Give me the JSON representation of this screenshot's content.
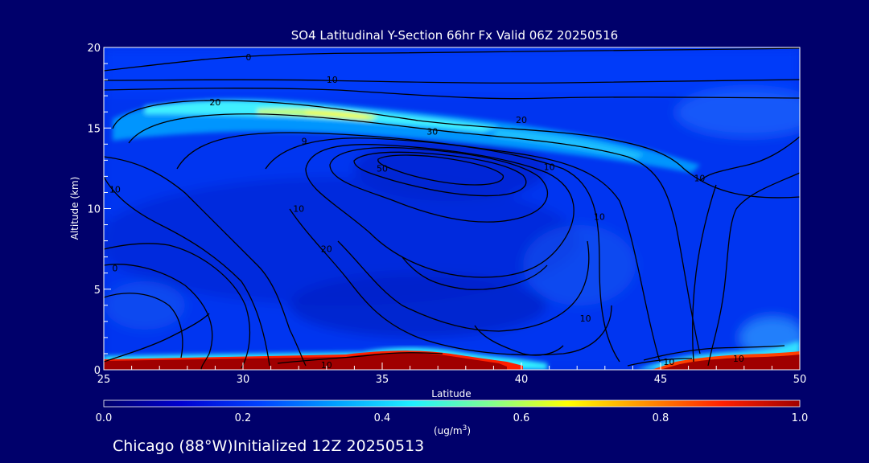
{
  "chart_data": {
    "type": "heatmap",
    "title": "SO4 Latitudinal Y-Section 66hr  Fx Valid 06Z 20250516",
    "xlabel": "Latitude",
    "ylabel": "Altitude (km)",
    "xlim": [
      25,
      50
    ],
    "ylim": [
      0,
      20
    ],
    "x_ticks": [
      "25",
      "30",
      "35",
      "40",
      "45",
      "50"
    ],
    "y_ticks": [
      "0",
      "5",
      "10",
      "15",
      "20"
    ],
    "colorbar": {
      "ticks": [
        "0.0",
        "0.2",
        "0.4",
        "0.6",
        "0.8",
        "1.0"
      ],
      "range": [
        0.0,
        1.0
      ],
      "unit_main": "(ug/m",
      "unit_sup": "3",
      "unit_end": ")",
      "colormap": [
        "#00006b",
        "#0000d0",
        "#0040ff",
        "#00a0ff",
        "#20f0ff",
        "#80ff90",
        "#ffff00",
        "#ff9000",
        "#ff2000",
        "#a00000"
      ]
    },
    "sulfate_features": [
      {
        "name": "upper layer",
        "lat": [
          26,
          44
        ],
        "alt_km": [
          14.5,
          16.8
        ],
        "peak_value": 0.55
      },
      {
        "name": "surface layer west",
        "lat": [
          25,
          41
        ],
        "alt_km": [
          0,
          0.7
        ],
        "peak_value": 1.0
      },
      {
        "name": "surface layer east",
        "lat": [
          45,
          50
        ],
        "alt_km": [
          0,
          1.0
        ],
        "peak_value": 1.0
      },
      {
        "name": "background",
        "lat": [
          25,
          50
        ],
        "alt_km": [
          0.7,
          14
        ],
        "peak_value": 0.12
      }
    ],
    "contour_labels": [
      {
        "text": "0",
        "lat": 30.2,
        "alt": 19.4
      },
      {
        "text": "10",
        "lat": 33.2,
        "alt": 18.0
      },
      {
        "text": "20",
        "lat": 29.0,
        "alt": 16.6
      },
      {
        "text": "20",
        "lat": 40.0,
        "alt": 15.5
      },
      {
        "text": "30",
        "lat": 36.8,
        "alt": 14.8
      },
      {
        "text": "9",
        "lat": 32.2,
        "alt": 14.2
      },
      {
        "text": "50",
        "lat": 35.0,
        "alt": 12.5
      },
      {
        "text": "10",
        "lat": 41.0,
        "alt": 12.6
      },
      {
        "text": "10",
        "lat": 46.4,
        "alt": 11.9
      },
      {
        "text": "10",
        "lat": 25.4,
        "alt": 11.2
      },
      {
        "text": "10",
        "lat": 32.0,
        "alt": 10.0
      },
      {
        "text": "10",
        "lat": 42.8,
        "alt": 9.5
      },
      {
        "text": "20",
        "lat": 33.0,
        "alt": 7.5
      },
      {
        "text": "0",
        "lat": 25.4,
        "alt": 6.3
      },
      {
        "text": "10",
        "lat": 42.3,
        "alt": 3.2
      },
      {
        "text": "10",
        "lat": 33.0,
        "alt": 0.3
      },
      {
        "text": "10",
        "lat": 45.3,
        "alt": 0.5
      },
      {
        "text": "10",
        "lat": 47.8,
        "alt": 0.7
      }
    ]
  },
  "footer": {
    "text": "Chicago (88°W)Initialized 12Z 20250513"
  },
  "colors": {
    "background": "#00006b",
    "contour": "#000000",
    "text": "#ffffff"
  }
}
